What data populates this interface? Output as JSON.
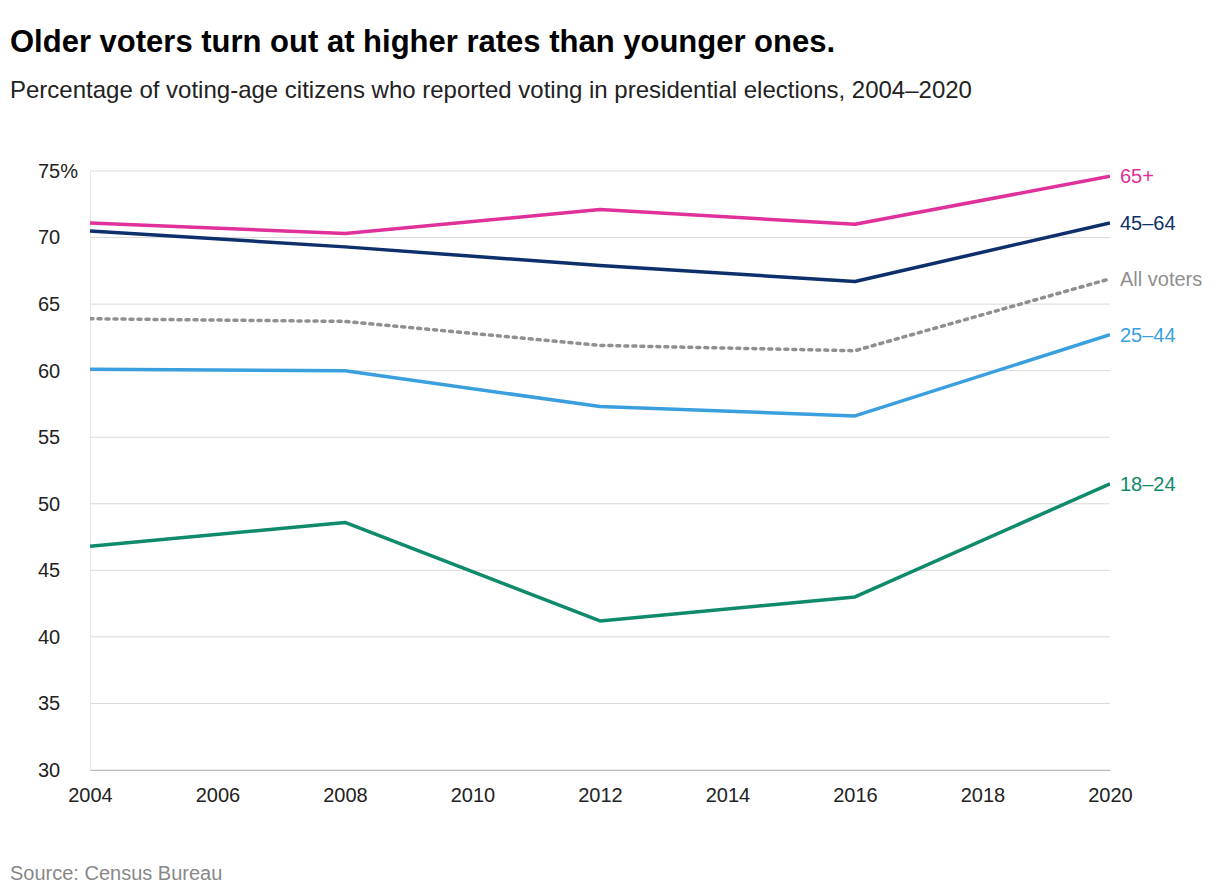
{
  "chart_data": {
    "type": "line",
    "title": "Older voters turn out at higher rates than younger ones.",
    "subtitle": "Percentage of voting-age citizens who reported voting in presidential elections, 2004–2020",
    "source": "Source: Census Bureau",
    "x": [
      2004,
      2008,
      2012,
      2016,
      2020
    ],
    "xlim": [
      2004,
      2020
    ],
    "xticks": [
      2004,
      2006,
      2008,
      2010,
      2012,
      2014,
      2016,
      2018,
      2020
    ],
    "ylim": [
      30,
      75
    ],
    "yticks": [
      30,
      35,
      40,
      45,
      50,
      55,
      60,
      65,
      70,
      {
        "value": 75,
        "label": "75%"
      }
    ],
    "grid": true,
    "series": [
      {
        "name": "65+",
        "color": "#e0309a",
        "values": [
          71.1,
          70.3,
          72.1,
          71.0,
          74.6
        ]
      },
      {
        "name": "45–64",
        "color": "#0d2f6b",
        "values": [
          70.5,
          69.3,
          67.9,
          66.7,
          71.1
        ]
      },
      {
        "name": "All voters",
        "color": "#8f8f8f",
        "line_style": "dotted",
        "values": [
          63.9,
          63.7,
          61.9,
          61.5,
          66.9
        ]
      },
      {
        "name": "25–44",
        "color": "#3a9fde",
        "values": [
          60.1,
          60.0,
          57.3,
          56.6,
          62.7
        ]
      },
      {
        "name": "18–24",
        "color": "#0f8a6a",
        "values": [
          46.8,
          48.6,
          41.2,
          43.0,
          51.5
        ]
      }
    ]
  }
}
